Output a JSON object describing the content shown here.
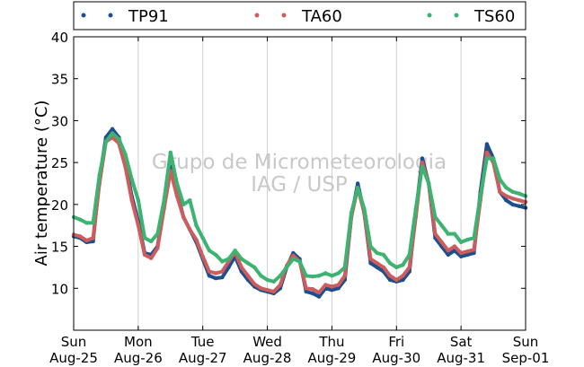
{
  "chart_data": {
    "type": "line",
    "ylabel": "Air temperature (°C)",
    "ylim": [
      5,
      40
    ],
    "yticks": [
      10,
      15,
      20,
      25,
      30,
      35,
      40
    ],
    "xlim": [
      0,
      7
    ],
    "xticks": [
      {
        "x": 0,
        "day": "Sun",
        "date": "Aug-25"
      },
      {
        "x": 1,
        "day": "Mon",
        "date": "Aug-26"
      },
      {
        "x": 2,
        "day": "Tue",
        "date": "Aug-27"
      },
      {
        "x": 3,
        "day": "Wed",
        "date": "Aug-28"
      },
      {
        "x": 4,
        "day": "Thu",
        "date": "Aug-29"
      },
      {
        "x": 5,
        "day": "Fri",
        "date": "Aug-30"
      },
      {
        "x": 6,
        "day": "Sat",
        "date": "Aug-31"
      },
      {
        "x": 7,
        "day": "Sun",
        "date": "Sep-01"
      }
    ],
    "grid": "vertical",
    "legend_position": "top",
    "watermark": [
      "Grupo de Micrometeorologia",
      "IAG / USP"
    ],
    "x": [
      0,
      0.1,
      0.2,
      0.3,
      0.4,
      0.5,
      0.6,
      0.7,
      0.8,
      0.9,
      1.0,
      1.1,
      1.2,
      1.3,
      1.4,
      1.5,
      1.6,
      1.7,
      1.8,
      1.9,
      2.0,
      2.1,
      2.2,
      2.3,
      2.4,
      2.5,
      2.6,
      2.7,
      2.8,
      2.9,
      3.0,
      3.1,
      3.2,
      3.3,
      3.4,
      3.5,
      3.6,
      3.7,
      3.8,
      3.9,
      4.0,
      4.1,
      4.2,
      4.3,
      4.4,
      4.5,
      4.6,
      4.7,
      4.8,
      4.9,
      5.0,
      5.1,
      5.2,
      5.3,
      5.4,
      5.5,
      5.6,
      5.7,
      5.8,
      5.9,
      6.0,
      6.1,
      6.2,
      6.3,
      6.4,
      6.5,
      6.6,
      6.7,
      6.8,
      6.9,
      7.0
    ],
    "series": [
      {
        "name": "TP91",
        "color": "#1f4e8c",
        "values": [
          16.2,
          16.0,
          15.5,
          15.6,
          23.0,
          28.0,
          29.0,
          28.0,
          25.0,
          21.0,
          18.0,
          14.2,
          14.0,
          15.0,
          20.0,
          24.5,
          21.5,
          18.5,
          17.0,
          15.5,
          13.5,
          11.5,
          11.2,
          11.3,
          12.5,
          13.8,
          12.0,
          11.0,
          10.2,
          9.8,
          9.6,
          9.4,
          10.0,
          12.5,
          14.2,
          13.5,
          9.6,
          9.4,
          9.0,
          10.0,
          9.8,
          10.0,
          11.0,
          18.5,
          22.5,
          19.0,
          13.0,
          12.5,
          12.0,
          11.0,
          10.8,
          11.0,
          12.0,
          19.0,
          25.5,
          22.5,
          16.0,
          15.0,
          14.0,
          14.5,
          13.8,
          14.0,
          14.2,
          21.5,
          27.2,
          25.5,
          21.5,
          20.5,
          20.0,
          19.8,
          19.6
        ]
      },
      {
        "name": "TA60",
        "color": "#cd5c5c",
        "values": [
          16.4,
          16.2,
          15.7,
          16.0,
          22.5,
          27.5,
          28.0,
          27.3,
          24.5,
          20.5,
          17.5,
          14.0,
          13.6,
          14.8,
          19.5,
          24.0,
          21.0,
          18.5,
          17.0,
          15.8,
          13.8,
          12.0,
          11.8,
          12.0,
          13.2,
          14.3,
          12.5,
          11.5,
          10.5,
          10.0,
          9.8,
          9.6,
          10.4,
          12.7,
          13.9,
          13.2,
          10.0,
          9.9,
          9.5,
          10.4,
          10.2,
          10.4,
          11.5,
          18.5,
          22.0,
          19.0,
          13.5,
          13.0,
          12.5,
          11.5,
          11.0,
          11.5,
          12.5,
          18.5,
          25.0,
          22.5,
          16.5,
          15.5,
          14.5,
          15.0,
          14.2,
          14.4,
          14.6,
          20.5,
          26.2,
          25.0,
          21.5,
          21.0,
          20.7,
          20.5,
          20.3
        ]
      },
      {
        "name": "TS60",
        "color": "#3cb371",
        "values": [
          18.5,
          18.2,
          17.8,
          17.8,
          23.5,
          27.5,
          28.5,
          27.8,
          26.0,
          23.0,
          20.5,
          16.0,
          15.6,
          16.5,
          20.5,
          26.2,
          22.5,
          20.0,
          20.5,
          17.5,
          16.0,
          14.5,
          14.0,
          13.2,
          13.5,
          14.5,
          13.5,
          13.0,
          12.5,
          11.5,
          11.0,
          10.8,
          11.5,
          12.5,
          13.5,
          13.2,
          11.5,
          11.4,
          11.5,
          11.8,
          11.5,
          11.8,
          12.5,
          19.0,
          22.0,
          19.5,
          15.0,
          14.2,
          14.0,
          13.0,
          12.5,
          12.8,
          14.0,
          19.5,
          24.5,
          22.5,
          18.5,
          17.5,
          16.5,
          16.5,
          15.5,
          15.8,
          16.0,
          21.0,
          25.5,
          25.5,
          23.0,
          22.0,
          21.5,
          21.3,
          21.0
        ]
      }
    ]
  }
}
